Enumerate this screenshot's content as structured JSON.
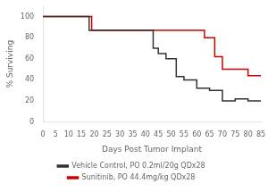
{
  "chart_data": {
    "type": "line",
    "xlabel": "Days Post Tumor Implant",
    "ylabel": "% Surviving",
    "xlim": [
      0,
      85
    ],
    "ylim": [
      0,
      110
    ],
    "xticks": [
      0,
      5,
      10,
      15,
      20,
      25,
      30,
      35,
      40,
      45,
      50,
      55,
      60,
      65,
      70,
      75,
      80,
      85
    ],
    "yticks": [
      0,
      20,
      40,
      60,
      80,
      100
    ],
    "grid": false,
    "legend": "bottom",
    "series": [
      {
        "name": "Vehicle Control, PO 0.2ml/20g QDx28",
        "color": "#333333",
        "line_style": "step",
        "x": [
          0,
          18,
          42,
          43,
          45,
          48,
          52,
          55,
          60,
          65,
          70,
          75,
          80,
          85
        ],
        "values": [
          100,
          87,
          87,
          70,
          65,
          60,
          43,
          40,
          32,
          30,
          20,
          22,
          20,
          20
        ]
      },
      {
        "name": "Sunitinib, PO 44.4mg/kg QDx28",
        "color": "#cc0000",
        "line_style": "step",
        "x": [
          0,
          19,
          60,
          63,
          67,
          70,
          80,
          85
        ],
        "values": [
          100,
          87,
          87,
          80,
          62,
          50,
          44,
          44
        ]
      }
    ]
  }
}
